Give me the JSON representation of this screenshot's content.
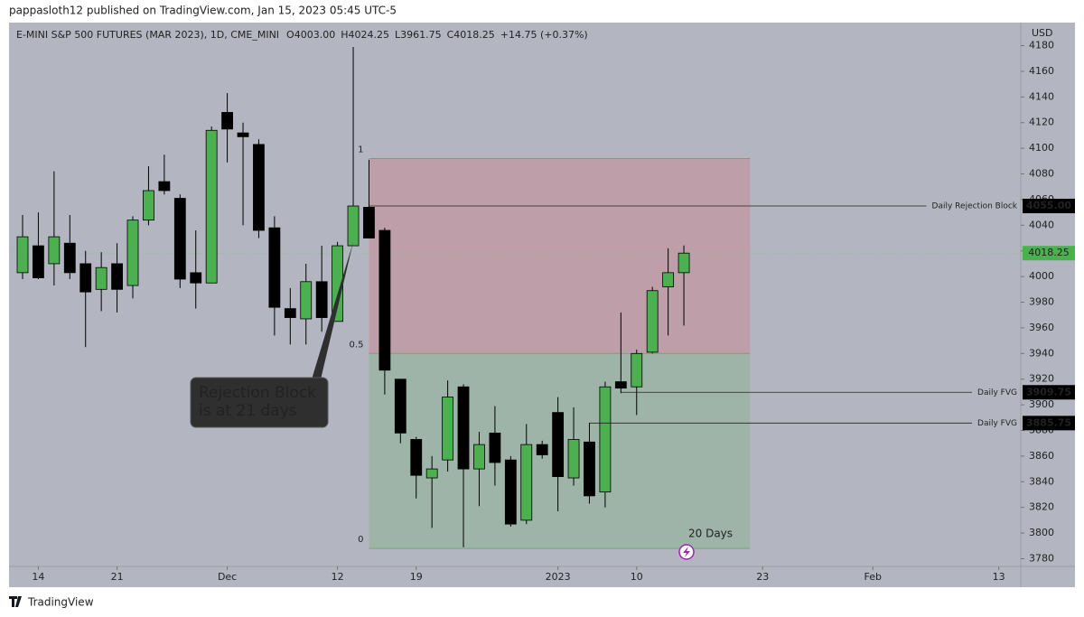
{
  "header": {
    "published": "pappasloth12 published on TradingView.com, Jan 15, 2023 05:45 UTC-5",
    "footer": "TradingView"
  },
  "chart_data": {
    "type": "candlestick",
    "title": "E-MINI S&P 500 FUTURES (MAR 2023), 1D, CME_MINI",
    "ohlc_labels": [
      "O4003.00",
      "H4024.25",
      "L3961.75",
      "C4018.25",
      "+14.75 (+0.37%)"
    ],
    "y_unit": "USD",
    "up_color": "#4caf50",
    "down_color": "#000000",
    "open": [
      4003,
      4024,
      4010,
      4026,
      4010,
      3990,
      4010,
      3993,
      4044,
      4074,
      4061,
      4003,
      3995,
      4128,
      4112,
      4103,
      4038,
      3975,
      3967,
      3996,
      3965,
      4024,
      4054,
      4036,
      3920,
      3873,
      3843,
      3857,
      3914,
      3850,
      3878,
      3857,
      3810,
      3869,
      3894,
      3843,
      3871,
      3832,
      3918,
      3914,
      3941,
      3992,
      4003
    ],
    "high": [
      4048,
      4050,
      4082,
      4048,
      4020,
      4019,
      4026,
      4047,
      4086,
      4095,
      4064,
      4036,
      4117,
      4143,
      4120,
      4107,
      4047,
      3991,
      4010,
      4024,
      4027,
      4179,
      4091,
      4038,
      3920,
      3875,
      3860,
      3919,
      3916,
      3879,
      3899,
      3860,
      3885,
      3872,
      3906,
      3898,
      3886,
      3918,
      3972,
      3943,
      3992,
      4022,
      4024.25
    ],
    "low": [
      3998,
      3998,
      3993,
      3998,
      3945,
      3973,
      3972,
      3983,
      4040,
      4064,
      3991,
      3975,
      3995,
      4089,
      4040,
      4030,
      3954,
      3947,
      3947,
      3957,
      3965,
      4024,
      4030,
      3908,
      3870,
      3827,
      3804,
      3848,
      3789,
      3821,
      3837,
      3805,
      3807,
      3858,
      3817,
      3837,
      3823,
      3820,
      3909,
      3892,
      3940,
      3954,
      3961.75
    ],
    "close": [
      4031,
      3999,
      4031,
      4003,
      3988,
      4007,
      3990,
      4044,
      4067,
      4067,
      3998,
      3995,
      4114,
      4115,
      4109,
      4036,
      3976,
      3968,
      3996,
      3968,
      4024,
      4055,
      4030,
      3927,
      3878,
      3845,
      3850,
      3906,
      3850,
      3869,
      3855,
      3807,
      3869,
      3861,
      3844,
      3873,
      3829,
      3914,
      3913,
      3940,
      3989,
      4003,
      4018.25
    ],
    "last_price_label": "4018.25",
    "ylim": [
      3774,
      4198
    ],
    "yticks": [
      3780,
      3800,
      3820,
      3840,
      3860,
      3880,
      3900,
      3920,
      3940,
      3960,
      3980,
      4000,
      4020,
      4040,
      4060,
      4080,
      4100,
      4120,
      4140,
      4160,
      4180
    ],
    "xticks": [
      {
        "value": 1,
        "label": "14"
      },
      {
        "value": 6,
        "label": "21"
      },
      {
        "value": 13,
        "label": "Dec"
      },
      {
        "value": 20,
        "label": "12"
      },
      {
        "value": 25,
        "label": "19"
      },
      {
        "value": 34,
        "label": "2023"
      },
      {
        "value": 39,
        "label": "10"
      },
      {
        "value": 47,
        "label": "23"
      },
      {
        "value": 54,
        "label": "Feb"
      },
      {
        "value": 62,
        "label": "13"
      }
    ],
    "fib": {
      "start": 22,
      "end": 46.2,
      "levels": [
        {
          "value": 4092,
          "label": "1"
        },
        {
          "value": 3940,
          "label": "0.5"
        },
        {
          "value": 3788,
          "label": "0"
        }
      ]
    },
    "levels": [
      {
        "name": "Daily Rejection Block",
        "value": 4055,
        "value_label": "4055.00",
        "start": 22
      },
      {
        "name": "Daily FVG",
        "value": 3909.75,
        "value_label": "3909.75",
        "start": 38
      },
      {
        "name": "Daily FVG",
        "value": 3885.75,
        "value_label": "3885.75",
        "start": 36
      }
    ],
    "callout": [
      "Rejection Block",
      "is at 21 days"
    ],
    "range_note": "20 Days"
  }
}
